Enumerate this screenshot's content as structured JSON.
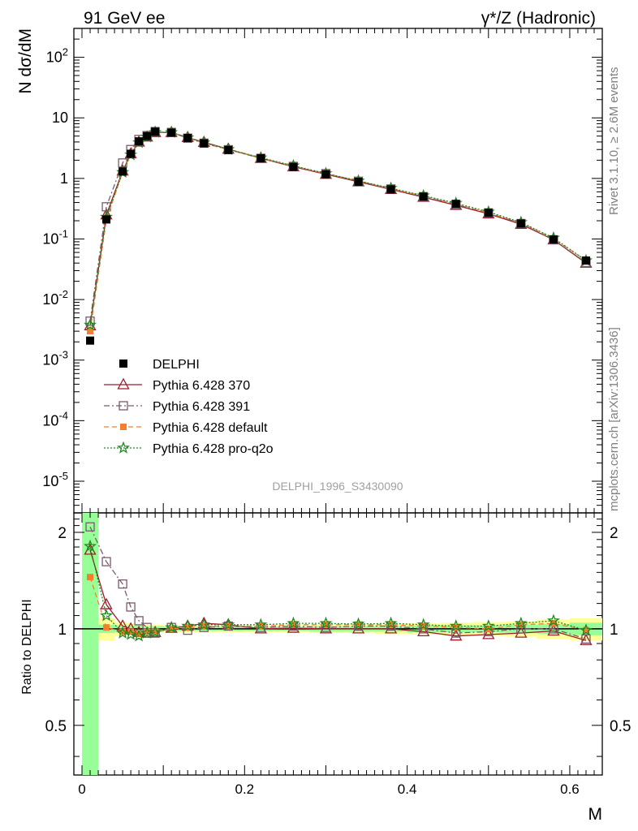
{
  "header": {
    "left": "91 GeV ee",
    "right": "γ*/Z (Hadronic)"
  },
  "side_labels": {
    "rivet": "Rivet 3.1.10, ≥ 2.6M events",
    "mcplots": "mcplots.cern.ch [arXiv:1306.3436]"
  },
  "analysis_tag": "DELPHI_1996_S3430090",
  "colors": {
    "data": "#000000",
    "p370": "#9b1c2c",
    "p391": "#7a5a6e",
    "pdefault": "#f57f2f",
    "pproq2o": "#1a8a1a",
    "band_green": "#98ff98",
    "band_yellow": "#ffff99"
  },
  "chart_data": [
    {
      "type": "line",
      "ylabel": "N dσ/dM",
      "xlim": [
        -0.01,
        0.64
      ],
      "ylim": [
        3e-06,
        300
      ],
      "yscale": "log",
      "ytick_labels": [
        "10^-5",
        "10^-4",
        "10^-3",
        "10^-2",
        "10^-1",
        "1",
        "10",
        "10^2"
      ],
      "legend_position": "middle-left",
      "x": [
        0.01,
        0.03,
        0.05,
        0.06,
        0.07,
        0.08,
        0.09,
        0.11,
        0.13,
        0.15,
        0.18,
        0.22,
        0.26,
        0.3,
        0.34,
        0.38,
        0.42,
        0.46,
        0.5,
        0.54,
        0.58,
        0.62
      ],
      "series": [
        {
          "name": "DELPHI",
          "marker": "filled-square",
          "color_key": "data",
          "values": [
            0.0021,
            0.21,
            1.3,
            2.55,
            4.1,
            5.0,
            5.9,
            5.7,
            4.65,
            3.8,
            2.95,
            2.15,
            1.55,
            1.17,
            0.88,
            0.66,
            0.5,
            0.38,
            0.27,
            0.18,
            0.098,
            0.044
          ]
        },
        {
          "name": "Pythia 6.428 370",
          "marker": "open-triangle",
          "line": "solid",
          "color_key": "p370",
          "values": [
            0.0037,
            0.25,
            1.33,
            2.55,
            4.0,
            4.85,
            5.75,
            5.73,
            4.75,
            3.95,
            3.05,
            2.15,
            1.56,
            1.17,
            0.88,
            0.66,
            0.49,
            0.36,
            0.26,
            0.175,
            0.097,
            0.04
          ]
        },
        {
          "name": "Pythia 6.428 391",
          "marker": "open-square",
          "line": "dashdot",
          "color_key": "p391",
          "values": [
            0.0044,
            0.34,
            1.8,
            3.0,
            4.4,
            5.1,
            5.95,
            5.75,
            4.62,
            3.82,
            2.98,
            2.15,
            1.58,
            1.2,
            0.9,
            0.67,
            0.5,
            0.37,
            0.27,
            0.18,
            0.097,
            0.041
          ]
        },
        {
          "name": "Pythia 6.428 default",
          "marker": "filled-square-small",
          "line": "dashed",
          "color_key": "pdefault",
          "values": [
            0.003,
            0.21,
            1.27,
            2.5,
            3.95,
            4.9,
            5.8,
            5.7,
            4.7,
            3.85,
            3.0,
            2.18,
            1.6,
            1.2,
            0.91,
            0.68,
            0.51,
            0.38,
            0.27,
            0.185,
            0.102,
            0.044
          ]
        },
        {
          "name": "Pythia 6.428 pro-q2o",
          "marker": "star",
          "line": "dotted",
          "color_key": "pproq2o",
          "values": [
            0.0038,
            0.23,
            1.26,
            2.45,
            3.9,
            4.85,
            5.75,
            5.75,
            4.72,
            3.9,
            3.02,
            2.2,
            1.62,
            1.21,
            0.91,
            0.69,
            0.52,
            0.39,
            0.28,
            0.188,
            0.104,
            0.044
          ]
        }
      ]
    },
    {
      "type": "line",
      "ylabel": "Ratio to DELPHI",
      "xlabel": "M",
      "xlim": [
        -0.01,
        0.64
      ],
      "ylim": [
        0.35,
        2.3
      ],
      "yscale": "log",
      "ytick_labels": [
        "0.5",
        "1",
        "2"
      ],
      "xtick_labels": [
        "0",
        "0.2",
        "0.4",
        "0.6"
      ],
      "x": [
        0.01,
        0.03,
        0.05,
        0.06,
        0.07,
        0.08,
        0.09,
        0.11,
        0.13,
        0.15,
        0.18,
        0.22,
        0.26,
        0.3,
        0.34,
        0.38,
        0.42,
        0.46,
        0.5,
        0.54,
        0.58,
        0.62
      ],
      "band_edges": [
        0.0,
        0.02,
        0.04,
        0.055,
        0.065,
        0.075,
        0.085,
        0.1,
        0.12,
        0.14,
        0.16,
        0.2,
        0.24,
        0.28,
        0.32,
        0.36,
        0.4,
        0.44,
        0.48,
        0.52,
        0.56,
        0.6,
        0.64
      ],
      "band_green": [
        [
          0.3,
          5.0
        ],
        [
          0.97,
          1.03
        ],
        [
          0.975,
          1.025
        ],
        [
          0.975,
          1.025
        ],
        [
          0.975,
          1.025
        ],
        [
          0.98,
          1.02
        ],
        [
          0.98,
          1.02
        ],
        [
          0.985,
          1.015
        ],
        [
          0.985,
          1.015
        ],
        [
          0.985,
          1.015
        ],
        [
          0.985,
          1.015
        ],
        [
          0.985,
          1.015
        ],
        [
          0.985,
          1.015
        ],
        [
          0.98,
          1.02
        ],
        [
          0.98,
          1.02
        ],
        [
          0.98,
          1.02
        ],
        [
          0.975,
          1.025
        ],
        [
          0.975,
          1.025
        ],
        [
          0.975,
          1.025
        ],
        [
          0.97,
          1.03
        ],
        [
          0.965,
          1.035
        ],
        [
          0.955,
          1.045
        ]
      ],
      "band_yellow": [
        [
          0.3,
          5.0
        ],
        [
          0.92,
          1.08
        ],
        [
          0.95,
          1.05
        ],
        [
          0.96,
          1.04
        ],
        [
          0.965,
          1.035
        ],
        [
          0.97,
          1.03
        ],
        [
          0.97,
          1.03
        ],
        [
          0.975,
          1.025
        ],
        [
          0.975,
          1.025
        ],
        [
          0.975,
          1.025
        ],
        [
          0.975,
          1.025
        ],
        [
          0.975,
          1.025
        ],
        [
          0.975,
          1.025
        ],
        [
          0.97,
          1.03
        ],
        [
          0.97,
          1.03
        ],
        [
          0.965,
          1.035
        ],
        [
          0.96,
          1.04
        ],
        [
          0.955,
          1.045
        ],
        [
          0.95,
          1.05
        ],
        [
          0.945,
          1.055
        ],
        [
          0.93,
          1.07
        ],
        [
          0.92,
          1.08
        ]
      ],
      "series": [
        {
          "name": "Pythia 6.428 370",
          "marker": "open-triangle",
          "line": "solid",
          "color_key": "p370",
          "values": [
            1.76,
            1.19,
            1.02,
            1.0,
            0.975,
            0.97,
            0.975,
            1.005,
            1.02,
            1.04,
            1.03,
            1.0,
            1.005,
            1.0,
            1.0,
            1.0,
            0.98,
            0.95,
            0.96,
            0.97,
            0.985,
            0.92
          ]
        },
        {
          "name": "Pythia 6.428 391",
          "marker": "open-square",
          "line": "dashdot",
          "color_key": "p391",
          "values": [
            2.08,
            1.62,
            1.38,
            1.17,
            1.06,
            1.01,
            0.97,
            1.01,
            0.99,
            1.01,
            1.02,
            1.01,
            1.02,
            1.01,
            1.02,
            1.02,
            1.0,
            0.97,
            0.98,
            1.0,
            1.0,
            0.93
          ]
        },
        {
          "name": "Pythia 6.428 default",
          "marker": "filled-square-small",
          "line": "dashed",
          "color_key": "pdefault",
          "values": [
            1.45,
            1.01,
            0.98,
            0.98,
            0.965,
            0.98,
            0.98,
            1.0,
            1.01,
            1.02,
            1.02,
            1.02,
            1.03,
            1.03,
            1.03,
            1.03,
            1.02,
            1.01,
            1.0,
            1.03,
            1.04,
            0.99
          ]
        },
        {
          "name": "Pythia 6.428 pro-q2o",
          "marker": "star",
          "line": "dotted",
          "color_key": "pproq2o",
          "values": [
            1.81,
            1.1,
            0.97,
            0.96,
            0.95,
            0.97,
            0.975,
            1.01,
            1.02,
            1.03,
            1.03,
            1.03,
            1.04,
            1.04,
            1.035,
            1.04,
            1.03,
            1.02,
            1.02,
            1.04,
            1.06,
            0.99
          ]
        }
      ]
    }
  ]
}
